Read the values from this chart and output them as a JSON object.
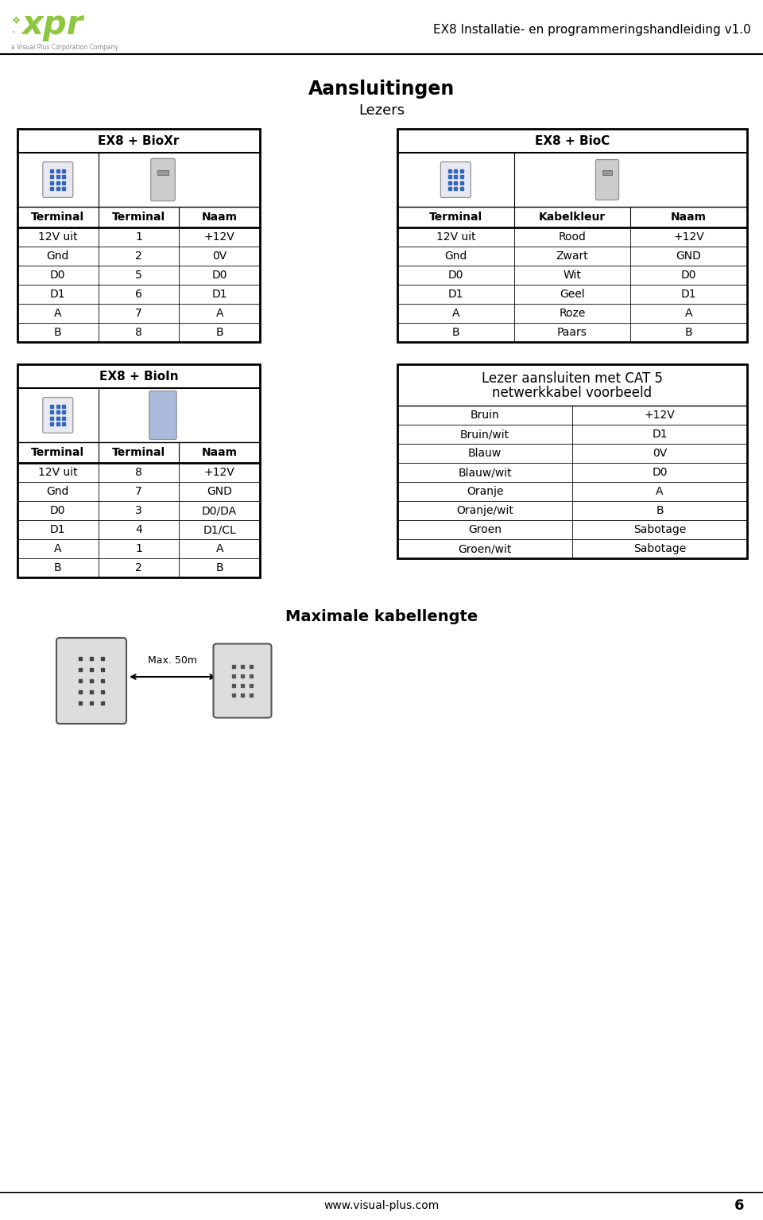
{
  "page_title": "EX8 Installatie- en programmeringshandleiding v1.0",
  "main_title": "Aansluitingen",
  "subtitle": "Lezers",
  "bioxr_title": "EX8 + BioXr",
  "bioxr_headers": [
    "Terminal",
    "Terminal",
    "Naam"
  ],
  "bioxr_rows": [
    [
      "12V uit",
      "1",
      "+12V"
    ],
    [
      "Gnd",
      "2",
      "0V"
    ],
    [
      "D0",
      "5",
      "D0"
    ],
    [
      "D1",
      "6",
      "D1"
    ],
    [
      "A",
      "7",
      "A"
    ],
    [
      "B",
      "8",
      "B"
    ]
  ],
  "bioc_title": "EX8 + BioC",
  "bioc_headers": [
    "Terminal",
    "Kabelkleur",
    "Naam"
  ],
  "bioc_rows": [
    [
      "12V uit",
      "Rood",
      "+12V"
    ],
    [
      "Gnd",
      "Zwart",
      "GND"
    ],
    [
      "D0",
      "Wit",
      "D0"
    ],
    [
      "D1",
      "Geel",
      "D1"
    ],
    [
      "A",
      "Roze",
      "A"
    ],
    [
      "B",
      "Paars",
      "B"
    ]
  ],
  "bioin_title": "EX8 + BioIn",
  "bioin_headers": [
    "Terminal",
    "Terminal",
    "Naam"
  ],
  "bioin_rows": [
    [
      "12V uit",
      "8",
      "+12V"
    ],
    [
      "Gnd",
      "7",
      "GND"
    ],
    [
      "D0",
      "3",
      "D0/DA"
    ],
    [
      "D1",
      "4",
      "D1/CL"
    ],
    [
      "A",
      "1",
      "A"
    ],
    [
      "B",
      "2",
      "B"
    ]
  ],
  "cat5_title1": "Lezer aansluiten met CAT 5",
  "cat5_title2": "netwerkkabel voorbeeld",
  "cat5_rows": [
    [
      "Bruin",
      "+12V"
    ],
    [
      "Bruin/wit",
      "D1"
    ],
    [
      "Blauw",
      "0V"
    ],
    [
      "Blauw/wit",
      "D0"
    ],
    [
      "Oranje",
      "A"
    ],
    [
      "Oranje/wit",
      "B"
    ],
    [
      "Groen",
      "Sabotage"
    ],
    [
      "Groen/wit",
      "Sabotage"
    ]
  ],
  "max_kabel_title": "Maximale kabellengte",
  "max_label": "Max. 50m",
  "footer_url": "www.visual-plus.com",
  "page_number": "6",
  "bg_color": "#ffffff",
  "text_color": "#000000",
  "logo_green": "#8dc63f"
}
